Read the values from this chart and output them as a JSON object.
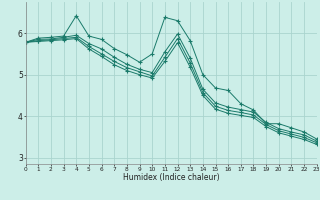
{
  "xlabel": "Humidex (Indice chaleur)",
  "bg_color": "#cceee8",
  "grid_color": "#aad4ce",
  "line_color": "#1a7a6a",
  "x": [
    0,
    1,
    2,
    3,
    4,
    5,
    6,
    7,
    8,
    9,
    10,
    11,
    12,
    13,
    14,
    15,
    16,
    17,
    18,
    19,
    20,
    21,
    22,
    23
  ],
  "series": [
    [
      5.78,
      5.88,
      5.9,
      5.93,
      6.42,
      5.93,
      5.85,
      5.63,
      5.48,
      5.3,
      5.5,
      6.38,
      6.3,
      5.82,
      5.0,
      4.68,
      4.62,
      4.3,
      4.15,
      3.82,
      3.82,
      3.72,
      3.62,
      3.45
    ],
    [
      5.78,
      5.85,
      5.86,
      5.9,
      5.95,
      5.75,
      5.62,
      5.42,
      5.25,
      5.13,
      5.05,
      5.55,
      5.98,
      5.4,
      4.65,
      4.32,
      4.22,
      4.16,
      4.1,
      3.85,
      3.7,
      3.62,
      3.55,
      3.4
    ],
    [
      5.78,
      5.82,
      5.84,
      5.87,
      5.9,
      5.68,
      5.5,
      5.32,
      5.17,
      5.07,
      4.97,
      5.42,
      5.87,
      5.28,
      4.57,
      4.24,
      4.14,
      4.09,
      4.03,
      3.8,
      3.65,
      3.57,
      3.49,
      3.36
    ],
    [
      5.78,
      5.8,
      5.82,
      5.84,
      5.87,
      5.62,
      5.44,
      5.24,
      5.1,
      5.0,
      4.92,
      5.32,
      5.77,
      5.18,
      4.5,
      4.17,
      4.07,
      4.02,
      3.97,
      3.75,
      3.6,
      3.52,
      3.44,
      3.32
    ]
  ],
  "xlim": [
    0,
    23
  ],
  "ylim": [
    2.85,
    6.75
  ],
  "yticks": [
    3,
    4,
    5,
    6
  ],
  "xticks": [
    0,
    1,
    2,
    3,
    4,
    5,
    6,
    7,
    8,
    9,
    10,
    11,
    12,
    13,
    14,
    15,
    16,
    17,
    18,
    19,
    20,
    21,
    22,
    23
  ]
}
